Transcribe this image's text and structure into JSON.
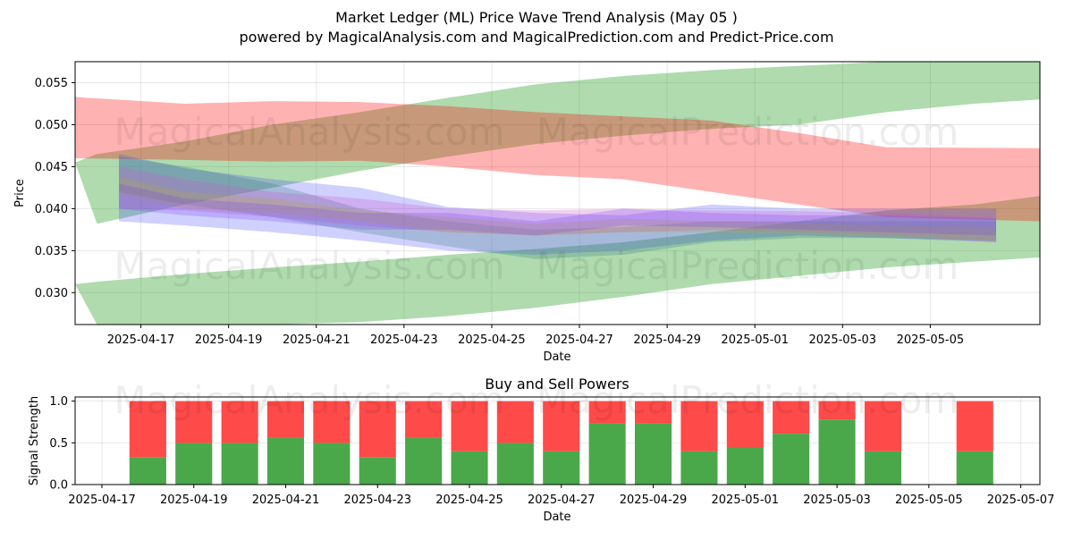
{
  "title_line1": "Market Ledger (ML) Price Wave Trend Analysis (May 05 )",
  "title_line2": "powered by MagicalAnalysis.com and MagicalPrediction.com and Predict-Price.com",
  "watermarks": [
    "MagicalAnalysis.com",
    "MagicalPrediction.com"
  ],
  "chart_data": [
    {
      "type": "area",
      "xlabel": "Date",
      "ylabel": "Price",
      "x_ticks": [
        "2025-04-17",
        "2025-04-19",
        "2025-04-21",
        "2025-04-23",
        "2025-04-25",
        "2025-04-27",
        "2025-04-29",
        "2025-05-01",
        "2025-05-03",
        "2025-05-05"
      ],
      "y_ticks": [
        "0.030",
        "0.035",
        "0.040",
        "0.045",
        "0.050",
        "0.055"
      ],
      "xlim": [
        "2025-04-15T12:00",
        "2025-05-07T12:00"
      ],
      "ylim": [
        0.0262,
        0.0575
      ],
      "grid": true,
      "bands": [
        {
          "color": "#2ca02c",
          "opacity": 0.38,
          "x": [
            "2025-04-15T12:00",
            "2025-04-16",
            "2025-04-18",
            "2025-04-20",
            "2025-04-22",
            "2025-04-24",
            "2025-04-26",
            "2025-04-28",
            "2025-04-30",
            "2025-05-02",
            "2025-05-04",
            "2025-05-06",
            "2025-05-07T12:00"
          ],
          "upper": [
            0.0455,
            0.0465,
            0.048,
            0.05,
            0.0515,
            0.0532,
            0.0548,
            0.0558,
            0.0565,
            0.057,
            0.0575,
            0.0575,
            0.0575
          ],
          "lower": [
            0.0455,
            0.0382,
            0.0405,
            0.0425,
            0.0445,
            0.0462,
            0.0477,
            0.0487,
            0.0495,
            0.05,
            0.0515,
            0.0525,
            0.053
          ]
        },
        {
          "color": "#2ca02c",
          "opacity": 0.38,
          "x": [
            "2025-04-15T12:00",
            "2025-04-16",
            "2025-04-18",
            "2025-04-20",
            "2025-04-22",
            "2025-04-24",
            "2025-04-26",
            "2025-04-28",
            "2025-04-30",
            "2025-05-02",
            "2025-05-04",
            "2025-05-06",
            "2025-05-07T12:00"
          ],
          "upper": [
            0.031,
            0.0313,
            0.0322,
            0.033,
            0.0337,
            0.0345,
            0.0352,
            0.036,
            0.0372,
            0.0385,
            0.0398,
            0.0405,
            0.0415
          ],
          "lower": [
            0.031,
            0.0262,
            0.0262,
            0.0262,
            0.0265,
            0.0272,
            0.0282,
            0.0295,
            0.031,
            0.032,
            0.033,
            0.0337,
            0.0342
          ]
        },
        {
          "color": "#ff0000",
          "opacity": 0.3,
          "x": [
            "2025-04-15T12:00",
            "2025-04-18",
            "2025-04-20",
            "2025-04-22",
            "2025-04-24",
            "2025-04-26",
            "2025-04-28",
            "2025-04-30",
            "2025-05-02",
            "2025-05-04",
            "2025-05-07T12:00"
          ],
          "upper": [
            0.0533,
            0.0525,
            0.0528,
            0.0527,
            0.0522,
            0.0515,
            0.051,
            0.0505,
            0.049,
            0.0473,
            0.0472
          ],
          "lower": [
            0.046,
            0.0458,
            0.0456,
            0.0457,
            0.045,
            0.044,
            0.0435,
            0.042,
            0.0405,
            0.039,
            0.0385
          ]
        },
        {
          "color": "#4444ff",
          "opacity": 0.25,
          "x": [
            "2025-04-16T12:00",
            "2025-04-18",
            "2025-04-20",
            "2025-04-22",
            "2025-04-24",
            "2025-04-26",
            "2025-04-28",
            "2025-04-30",
            "2025-05-02",
            "2025-05-04",
            "2025-05-06T12:00"
          ],
          "upper": [
            0.0465,
            0.0448,
            0.0435,
            0.0425,
            0.0402,
            0.0395,
            0.0392,
            0.0405,
            0.04,
            0.04,
            0.04
          ],
          "lower": [
            0.0385,
            0.038,
            0.0372,
            0.0362,
            0.035,
            0.0345,
            0.035,
            0.0362,
            0.0368,
            0.0365,
            0.036
          ]
        },
        {
          "color": "#3a7d7d",
          "opacity": 0.28,
          "x": [
            "2025-04-16T12:00",
            "2025-04-18",
            "2025-04-20",
            "2025-04-22",
            "2025-04-24",
            "2025-04-26",
            "2025-04-28",
            "2025-04-30",
            "2025-05-02",
            "2025-05-04",
            "2025-05-06T12:00"
          ],
          "upper": [
            0.0462,
            0.045,
            0.043,
            0.04,
            0.0385,
            0.0375,
            0.0378,
            0.0385,
            0.0385,
            0.0385,
            0.0385
          ],
          "lower": [
            0.042,
            0.0405,
            0.039,
            0.0372,
            0.0355,
            0.034,
            0.0345,
            0.036,
            0.0365,
            0.0365,
            0.0362
          ]
        },
        {
          "color": "#cc55cc",
          "opacity": 0.28,
          "x": [
            "2025-04-16T12:00",
            "2025-04-18",
            "2025-04-20",
            "2025-04-22",
            "2025-04-24",
            "2025-04-26",
            "2025-04-28",
            "2025-04-30",
            "2025-05-02",
            "2025-05-04",
            "2025-05-06T12:00"
          ],
          "upper": [
            0.045,
            0.0435,
            0.042,
            0.0412,
            0.04,
            0.0398,
            0.04,
            0.0398,
            0.0397,
            0.0395,
            0.039
          ],
          "lower": [
            0.04,
            0.0398,
            0.039,
            0.038,
            0.0372,
            0.0368,
            0.0372,
            0.0375,
            0.0372,
            0.0368,
            0.036
          ]
        },
        {
          "color": "#b5a642",
          "opacity": 0.28,
          "x": [
            "2025-04-16T12:00",
            "2025-04-18",
            "2025-04-20",
            "2025-04-22",
            "2025-04-24",
            "2025-04-26",
            "2025-04-28",
            "2025-04-30",
            "2025-05-02",
            "2025-05-04",
            "2025-05-06T12:00"
          ],
          "upper": [
            0.0438,
            0.042,
            0.0412,
            0.0398,
            0.039,
            0.0382,
            0.0388,
            0.0385,
            0.0383,
            0.038,
            0.0378
          ],
          "lower": [
            0.0418,
            0.04,
            0.0395,
            0.0385,
            0.0372,
            0.0368,
            0.0372,
            0.0372,
            0.037,
            0.0367,
            0.0362
          ]
        },
        {
          "color": "#7744ee",
          "opacity": 0.25,
          "x": [
            "2025-04-16T12:00",
            "2025-04-18",
            "2025-04-20",
            "2025-04-22",
            "2025-04-24",
            "2025-04-26",
            "2025-04-28",
            "2025-04-30",
            "2025-05-02",
            "2025-05-04",
            "2025-05-06T12:00"
          ],
          "upper": [
            0.043,
            0.0412,
            0.0405,
            0.0395,
            0.0395,
            0.0385,
            0.04,
            0.0395,
            0.0392,
            0.0392,
            0.0388
          ],
          "lower": [
            0.04,
            0.0392,
            0.0385,
            0.0375,
            0.0375,
            0.0368,
            0.038,
            0.0378,
            0.0375,
            0.0372,
            0.0368
          ]
        }
      ]
    },
    {
      "type": "bar",
      "title": "Buy and Sell Powers",
      "xlabel": "Date",
      "ylabel": "Signal Strength",
      "x_ticks": [
        "2025-04-17",
        "2025-04-19",
        "2025-04-21",
        "2025-04-23",
        "2025-04-25",
        "2025-04-27",
        "2025-04-29",
        "2025-05-01",
        "2025-05-03",
        "2025-05-05",
        "2025-05-07"
      ],
      "y_ticks": [
        "0.0",
        "0.5",
        "1.0"
      ],
      "xlim": [
        "2025-04-16T10:00",
        "2025-05-07T10:00"
      ],
      "ylim": [
        0,
        1.05
      ],
      "grid": true,
      "colors": {
        "buy": "#4aa84a",
        "sell": "#ff4a4a"
      },
      "categories": [
        "2025-04-18",
        "2025-04-19",
        "2025-04-20",
        "2025-04-21",
        "2025-04-22",
        "2025-04-23",
        "2025-04-24",
        "2025-04-25",
        "2025-04-26",
        "2025-04-27",
        "2025-04-28",
        "2025-04-29",
        "2025-04-30",
        "2025-05-01",
        "2025-05-02",
        "2025-05-03",
        "2025-05-04",
        "2025-05-06"
      ],
      "series": [
        {
          "values": [
            0.33,
            0.5,
            0.5,
            0.56,
            0.5,
            0.33,
            0.56,
            0.4,
            0.5,
            0.4,
            0.73,
            0.73,
            0.4,
            0.45,
            0.61,
            0.78,
            0.4,
            0.4
          ]
        },
        {
          "values": [
            0.67,
            0.5,
            0.5,
            0.44,
            0.5,
            0.67,
            0.44,
            0.6,
            0.5,
            0.6,
            0.27,
            0.27,
            0.6,
            0.55,
            0.39,
            0.22,
            0.6,
            0.6
          ]
        }
      ]
    }
  ]
}
